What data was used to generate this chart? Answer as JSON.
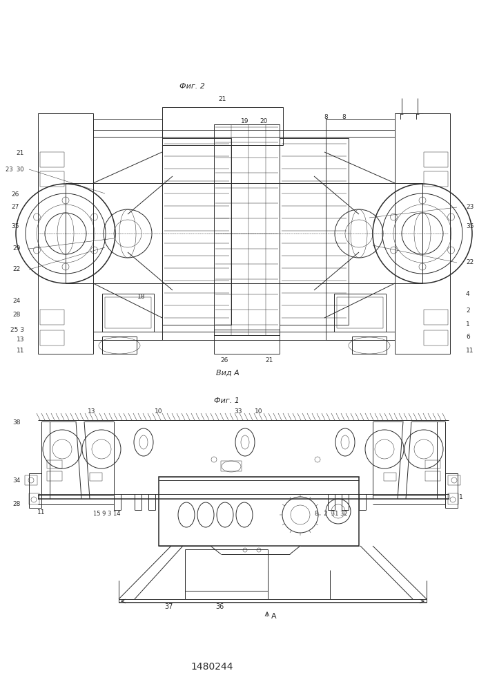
{
  "title": "1480244",
  "background_color": "#ffffff",
  "fig_width": 7.07,
  "fig_height": 10.0,
  "fig1_label": "Фиг. 1",
  "fig2_label": "Фиг. 2",
  "vid_a_label": "Вид A",
  "line_color": "#2a2a2a",
  "lw": 0.7,
  "tlw": 0.35,
  "thw": 1.1
}
